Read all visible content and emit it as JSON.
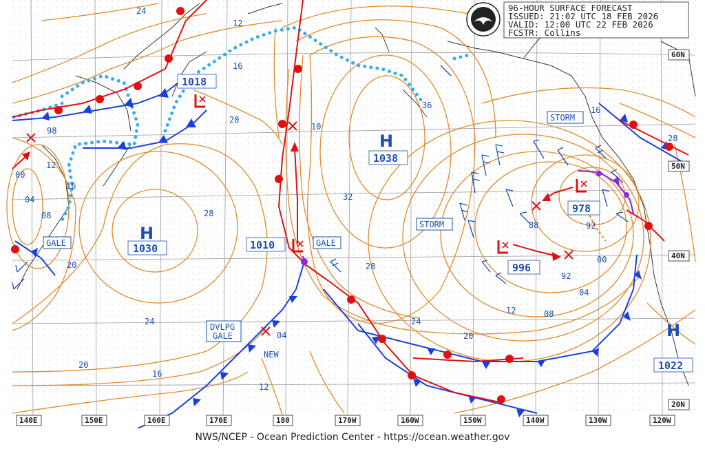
{
  "header": {
    "line1": "96-HOUR SURFACE FORECAST",
    "line2": "ISSUED: 21:02 UTC 18 FEB 2026",
    "line3": "VALID:  12:00 UTC 22 FEB 2026",
    "line4": "FCSTR:  Collins",
    "logo_text": "NOAA"
  },
  "footer": "NWS/NCEP - Ocean Prediction Center - https://ocean.weather.gov",
  "longitude_labels": [
    "140E",
    "150E",
    "160E",
    "170E",
    "180",
    "170W",
    "160W",
    "150W",
    "140W",
    "130W",
    "120W"
  ],
  "latitude_labels": [
    "60N",
    "50N",
    "40N",
    "20N"
  ],
  "pressure_centers": [
    {
      "type": "H",
      "value": "1030",
      "color": "#1a4fb5"
    },
    {
      "type": "H",
      "value": "1038",
      "color": "#1a4fb5"
    },
    {
      "type": "H",
      "value": "1022",
      "color": "#1a4fb5"
    },
    {
      "type": "L",
      "value": "1018",
      "color": "#e01010"
    },
    {
      "type": "L",
      "value": "1010",
      "color": "#e01010"
    },
    {
      "type": "L",
      "value": "996",
      "color": "#e01010"
    },
    {
      "type": "L",
      "value": "978",
      "color": "#e01010"
    }
  ],
  "warning_boxes": [
    "GALE",
    "GALE",
    "STORM",
    "STORM",
    "DVLPG\nGALE"
  ],
  "new_label": "NEW",
  "isobar_labels": [
    "24",
    "12",
    "16",
    "20",
    "28",
    "24",
    "20",
    "16",
    "12",
    "32",
    "28",
    "24",
    "20",
    "12",
    "08",
    "04",
    "00",
    "92",
    "88",
    "98",
    "12",
    "16",
    "04",
    "08",
    "10",
    "04",
    "92",
    "16",
    "28",
    "36",
    "00",
    "20"
  ],
  "colors": {
    "isobar": "#e08a2a",
    "cold_front": "#1a3fe0",
    "warm_front": "#e01010",
    "occluded": "#8a2be2",
    "ice_edge": "#3aaee8",
    "coast": "#333333",
    "grid": "#9a9a9a"
  }
}
